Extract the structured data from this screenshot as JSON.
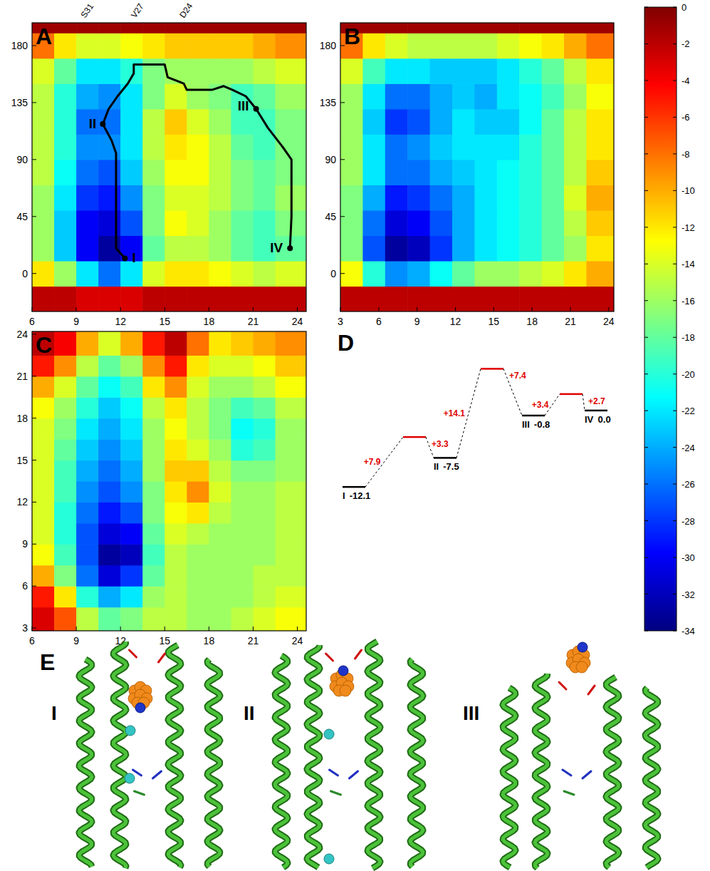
{
  "chart_data": [
    {
      "type": "heatmap",
      "title": "A",
      "xlim": [
        6,
        24.6
      ],
      "ylim": [
        -30,
        198
      ],
      "xticks": [
        6,
        9,
        12,
        15,
        18,
        21,
        24
      ],
      "yticks": [
        0,
        45,
        90,
        135,
        180
      ],
      "x_edges": [
        6,
        7.5,
        9,
        10.5,
        12,
        13.5,
        15,
        16.5,
        18,
        19.5,
        21,
        22.5,
        24.6
      ],
      "y_edges": [
        -30,
        -10,
        10,
        30,
        50,
        70,
        90,
        110,
        130,
        150,
        170,
        190,
        198
      ],
      "z": [
        [
          -2,
          -2,
          -3,
          -3,
          -3,
          -2,
          -2,
          -2,
          -2,
          -2,
          -2,
          -2
        ],
        [
          -12,
          -16,
          -22,
          -26,
          -22,
          -14,
          -12,
          -12,
          -13,
          -14,
          -15,
          -14
        ],
        [
          -16,
          -23,
          -30,
          -33,
          -30,
          -18,
          -15,
          -15,
          -16,
          -18,
          -19,
          -18
        ],
        [
          -16,
          -23,
          -30,
          -31,
          -27,
          -17,
          -13,
          -14,
          -16,
          -18,
          -19,
          -17
        ],
        [
          -16,
          -22,
          -28,
          -29,
          -25,
          -17,
          -14,
          -14,
          -15,
          -17,
          -18,
          -16
        ],
        [
          -15,
          -21,
          -26,
          -27,
          -23,
          -16,
          -13,
          -13,
          -15,
          -17,
          -18,
          -17
        ],
        [
          -15,
          -20,
          -25,
          -25,
          -22,
          -15,
          -12,
          -13,
          -15,
          -18,
          -19,
          -17
        ],
        [
          -15,
          -20,
          -26,
          -26,
          -22,
          -15,
          -11,
          -14,
          -16,
          -19,
          -19,
          -17
        ],
        [
          -15,
          -20,
          -24,
          -25,
          -22,
          -17,
          -14,
          -16,
          -17,
          -19,
          -18,
          -16
        ],
        [
          -14,
          -18,
          -22,
          -22,
          -20,
          -17,
          -16,
          -16,
          -16,
          -16,
          -15,
          -14
        ],
        [
          -8,
          -12,
          -14,
          -14,
          -13,
          -12,
          -11,
          -11,
          -11,
          -11,
          -10,
          -9
        ],
        [
          -1,
          -1,
          -1,
          -1,
          -1,
          -1,
          -1,
          -1,
          -1,
          -1,
          -1,
          -1
        ]
      ],
      "path": {
        "x": [
          12.3,
          11.7,
          11.7,
          11.4,
          10.8,
          11.2,
          11.8,
          12.5,
          12.9,
          12.9,
          15,
          15.2,
          16.3,
          16.5,
          18.2,
          19,
          19.6,
          20.5,
          21.2,
          22,
          23,
          23.6,
          23.6,
          23.5
        ],
        "y": [
          12,
          20,
          95,
          105,
          118,
          130,
          140,
          150,
          158,
          165,
          165,
          155,
          150,
          145,
          145,
          148,
          145,
          140,
          130,
          115,
          100,
          90,
          45,
          20
        ]
      },
      "points": [
        {
          "label": "I",
          "x": 12.3,
          "y": 12
        },
        {
          "label": "II",
          "x": 10.8,
          "y": 118
        },
        {
          "label": "III",
          "x": 21.2,
          "y": 130
        },
        {
          "label": "IV",
          "x": 23.5,
          "y": 20
        }
      ],
      "top_labels": [
        {
          "label": "S31",
          "x": 9.6
        },
        {
          "label": "V27",
          "x": 13
        },
        {
          "label": "D24",
          "x": 16.3
        }
      ]
    },
    {
      "type": "heatmap",
      "title": "B",
      "xlim": [
        3,
        24.4
      ],
      "ylim": [
        -30,
        198
      ],
      "xticks": [
        3,
        6,
        9,
        12,
        15,
        18,
        21,
        24
      ],
      "yticks": [
        0,
        45,
        90,
        135,
        180
      ],
      "x_edges": [
        3,
        4.75,
        6.5,
        8.25,
        10,
        11.75,
        13.5,
        15.25,
        17,
        18.75,
        20.5,
        22.25,
        24.4
      ],
      "y_edges": [
        -30,
        -10,
        10,
        30,
        50,
        70,
        90,
        110,
        130,
        150,
        170,
        190,
        198
      ],
      "z": [
        [
          -2,
          -2,
          -2,
          -2,
          -2,
          -2,
          -2,
          -2,
          -2,
          -2,
          -2,
          -2
        ],
        [
          -13,
          -20,
          -25,
          -24,
          -21,
          -18,
          -16,
          -16,
          -15,
          -14,
          -12,
          -10
        ],
        [
          -17,
          -27,
          -33,
          -32,
          -28,
          -24,
          -22,
          -21,
          -20,
          -18,
          -16,
          -12
        ],
        [
          -17,
          -26,
          -31,
          -30,
          -27,
          -24,
          -22,
          -21,
          -20,
          -18,
          -15,
          -11
        ],
        [
          -17,
          -24,
          -29,
          -28,
          -26,
          -24,
          -22,
          -21,
          -20,
          -18,
          -14,
          -10
        ],
        [
          -16,
          -22,
          -26,
          -26,
          -24,
          -23,
          -22,
          -21,
          -20,
          -18,
          -15,
          -11
        ],
        [
          -16,
          -22,
          -26,
          -25,
          -23,
          -22,
          -22,
          -22,
          -20,
          -18,
          -15,
          -12
        ],
        [
          -16,
          -23,
          -28,
          -27,
          -24,
          -22,
          -23,
          -23,
          -21,
          -18,
          -15,
          -12
        ],
        [
          -16,
          -22,
          -26,
          -26,
          -24,
          -23,
          -24,
          -22,
          -21,
          -19,
          -16,
          -13
        ],
        [
          -14,
          -19,
          -22,
          -22,
          -23,
          -23,
          -23,
          -22,
          -20,
          -18,
          -15,
          -12
        ],
        [
          -8,
          -12,
          -14,
          -15,
          -15,
          -15,
          -15,
          -14,
          -13,
          -12,
          -10,
          -8
        ],
        [
          -1,
          -1,
          -1,
          -1,
          -1,
          -1,
          -1,
          -1,
          -1,
          -1,
          -1,
          -1
        ]
      ]
    },
    {
      "type": "heatmap",
      "title": "C",
      "xlim": [
        6,
        24.6
      ],
      "ylim": [
        2.8,
        24.2
      ],
      "xticks": [
        6,
        9,
        12,
        15,
        18,
        21,
        24
      ],
      "yticks": [
        3,
        6,
        9,
        12,
        15,
        18,
        21,
        24
      ],
      "x_edges": [
        6,
        7.5,
        9,
        10.5,
        12,
        13.5,
        15,
        16.5,
        18,
        19.5,
        21,
        22.5,
        24.6
      ],
      "y_edges": [
        2.8,
        4.5,
        6,
        7.5,
        9,
        10.5,
        12,
        13.5,
        15,
        16.5,
        18,
        19.5,
        21,
        22.5,
        24.2
      ],
      "z": [
        [
          -3,
          -7,
          -15,
          -18,
          -17,
          -15,
          -15,
          -16,
          -16,
          -15,
          -14,
          -13
        ],
        [
          -5,
          -12,
          -20,
          -24,
          -22,
          -16,
          -15,
          -16,
          -16,
          -16,
          -15,
          -14
        ],
        [
          -10,
          -17,
          -26,
          -31,
          -28,
          -18,
          -15,
          -16,
          -16,
          -16,
          -15,
          -15
        ],
        [
          -13,
          -19,
          -27,
          -33,
          -32,
          -19,
          -15,
          -16,
          -16,
          -16,
          -16,
          -15
        ],
        [
          -14,
          -20,
          -27,
          -31,
          -30,
          -18,
          -14,
          -15,
          -16,
          -16,
          -16,
          -15
        ],
        [
          -14,
          -20,
          -26,
          -29,
          -27,
          -17,
          -13,
          -12,
          -15,
          -16,
          -16,
          -15
        ],
        [
          -14,
          -19,
          -25,
          -27,
          -25,
          -17,
          -12,
          -9,
          -14,
          -16,
          -16,
          -15
        ],
        [
          -14,
          -19,
          -24,
          -26,
          -24,
          -16,
          -11,
          -11,
          -15,
          -17,
          -17,
          -16
        ],
        [
          -14,
          -18,
          -23,
          -25,
          -23,
          -16,
          -12,
          -14,
          -16,
          -20,
          -19,
          -16
        ],
        [
          -14,
          -17,
          -22,
          -24,
          -22,
          -16,
          -13,
          -15,
          -17,
          -21,
          -20,
          -16
        ],
        [
          -13,
          -16,
          -20,
          -23,
          -21,
          -15,
          -12,
          -15,
          -17,
          -19,
          -18,
          -15
        ],
        [
          -10,
          -14,
          -18,
          -21,
          -19,
          -12,
          -9,
          -14,
          -16,
          -16,
          -15,
          -13
        ],
        [
          -5,
          -9,
          -15,
          -18,
          -16,
          -9,
          -5,
          -12,
          -14,
          -14,
          -13,
          -11
        ],
        [
          -2,
          -4,
          -10,
          -14,
          -10,
          -5,
          -2,
          -8,
          -12,
          -11,
          -10,
          -9
        ]
      ]
    },
    {
      "type": "energy_levels",
      "title": "D",
      "ylim": [
        -14,
        8
      ],
      "states": {
        "labels": [
          "I",
          "II",
          "III",
          "IV"
        ],
        "values": [
          -12.1,
          -7.5,
          -0.8,
          0
        ],
        "value_labels": [
          "-12.1",
          "-7.5",
          "-0.8",
          "0.0"
        ]
      },
      "barriers": {
        "forward": [
          7.9,
          14.1,
          3.4
        ],
        "forward_labels": [
          "+7.9",
          "+14.1",
          "+3.4"
        ],
        "backward": [
          3.3,
          7.4,
          2.7
        ],
        "backward_labels": [
          "+3.3",
          "+7.4",
          "+2.7"
        ]
      }
    }
  ],
  "colorbar": {
    "range": [
      -34,
      0
    ],
    "ticks": [
      0,
      -2,
      -4,
      -6,
      -8,
      -10,
      -12,
      -14,
      -16,
      -18,
      -20,
      -22,
      -24,
      -26,
      -28,
      -30,
      -32,
      -34
    ]
  },
  "panel_e": {
    "title": "E",
    "labels": [
      "I",
      "II",
      "III"
    ]
  }
}
